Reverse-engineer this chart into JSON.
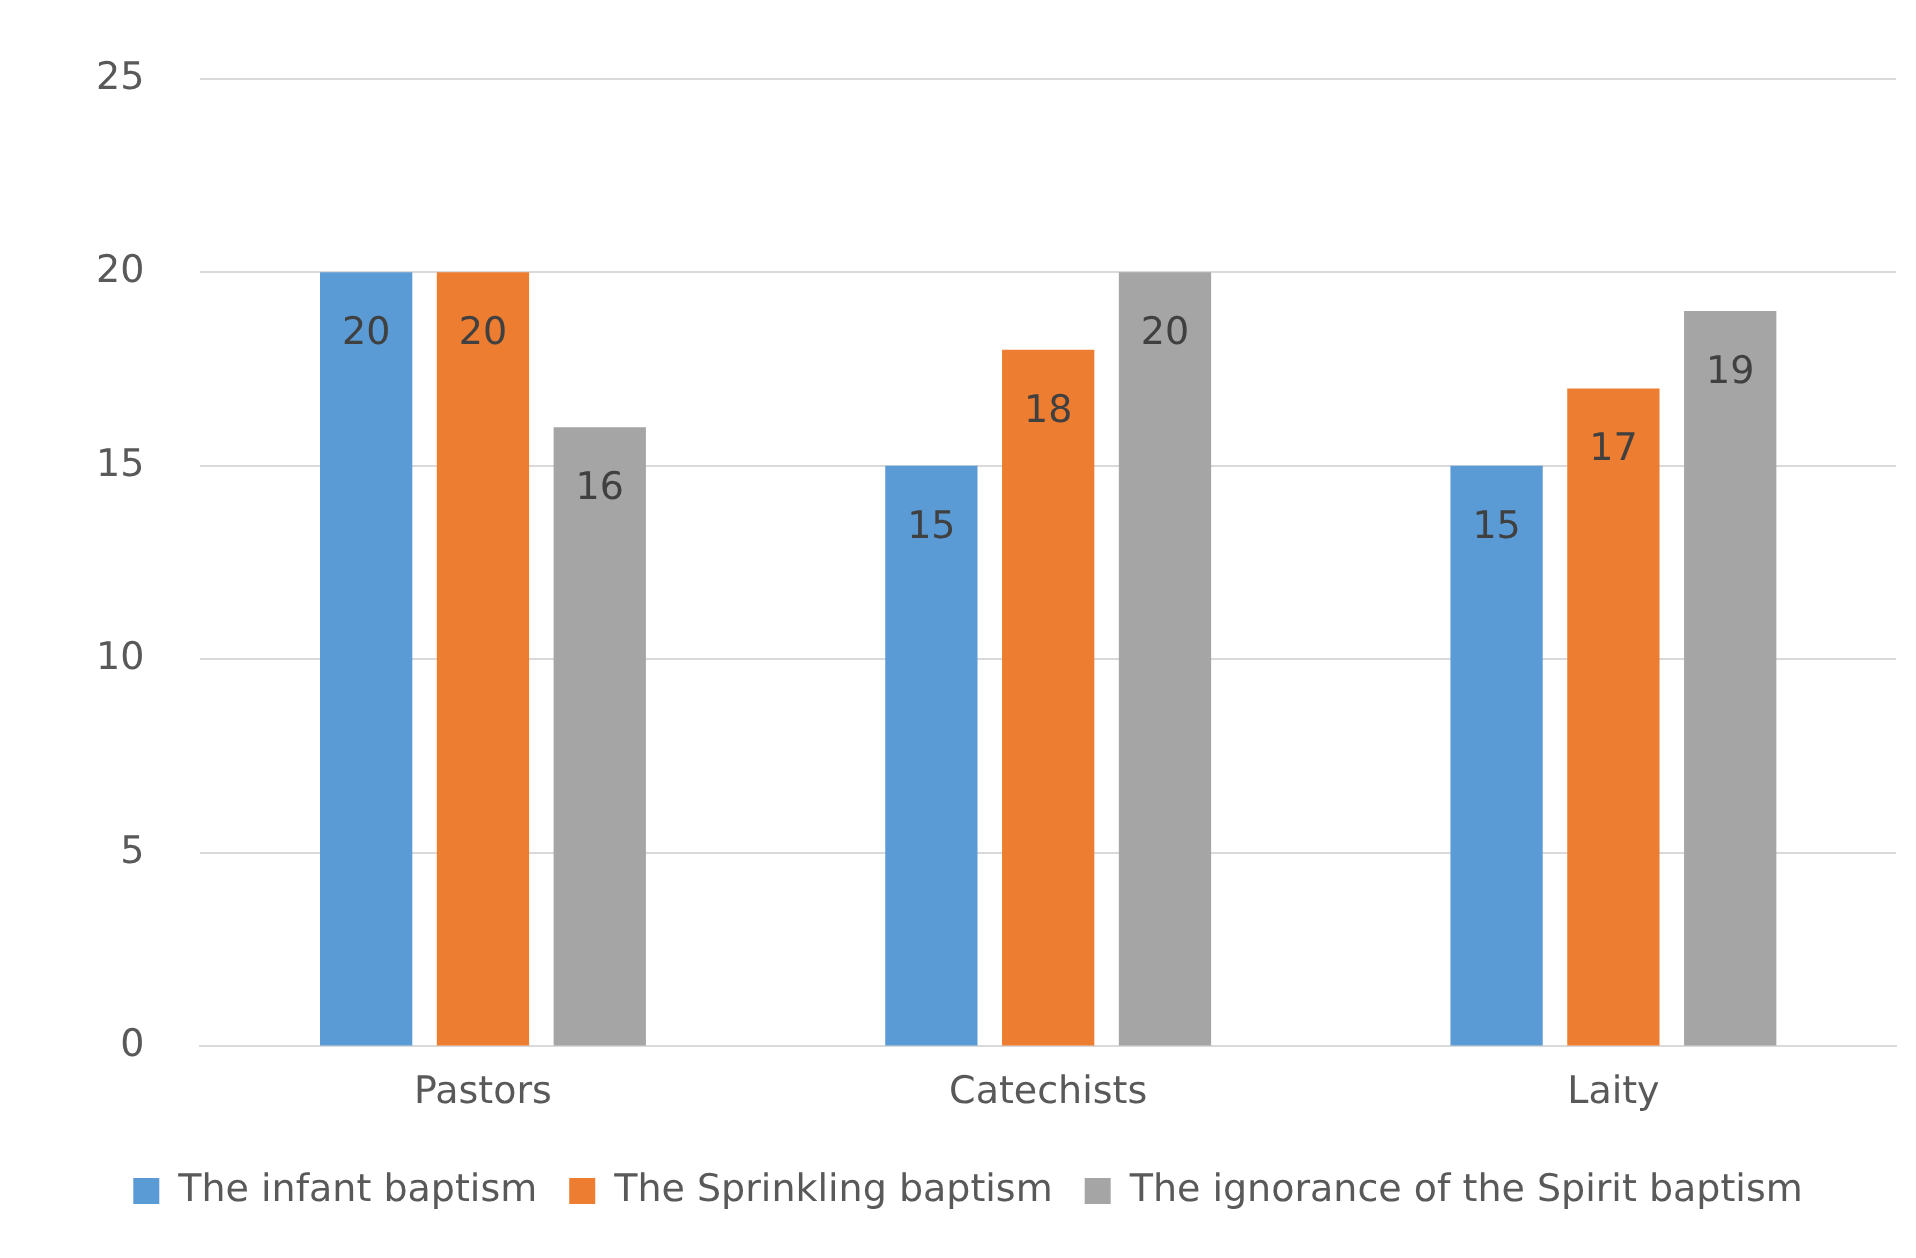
{
  "chart_data": {
    "type": "bar",
    "categories": [
      "Pastors",
      "Catechists",
      "Laity"
    ],
    "series": [
      {
        "name": "The infant baptism",
        "color": "#5b9bd5",
        "values": [
          20,
          15,
          15
        ]
      },
      {
        "name": "The Sprinkling baptism",
        "color": "#ed7d31",
        "values": [
          20,
          18,
          17
        ]
      },
      {
        "name": "The ignorance of the Spirit baptism",
        "color": "#a5a5a5",
        "values": [
          16,
          20,
          19
        ]
      }
    ],
    "ylim": [
      0,
      25
    ],
    "yticks": [
      0,
      5,
      10,
      15,
      20,
      25
    ],
    "grid": "y",
    "legend": "bottom",
    "data_labels": true
  }
}
